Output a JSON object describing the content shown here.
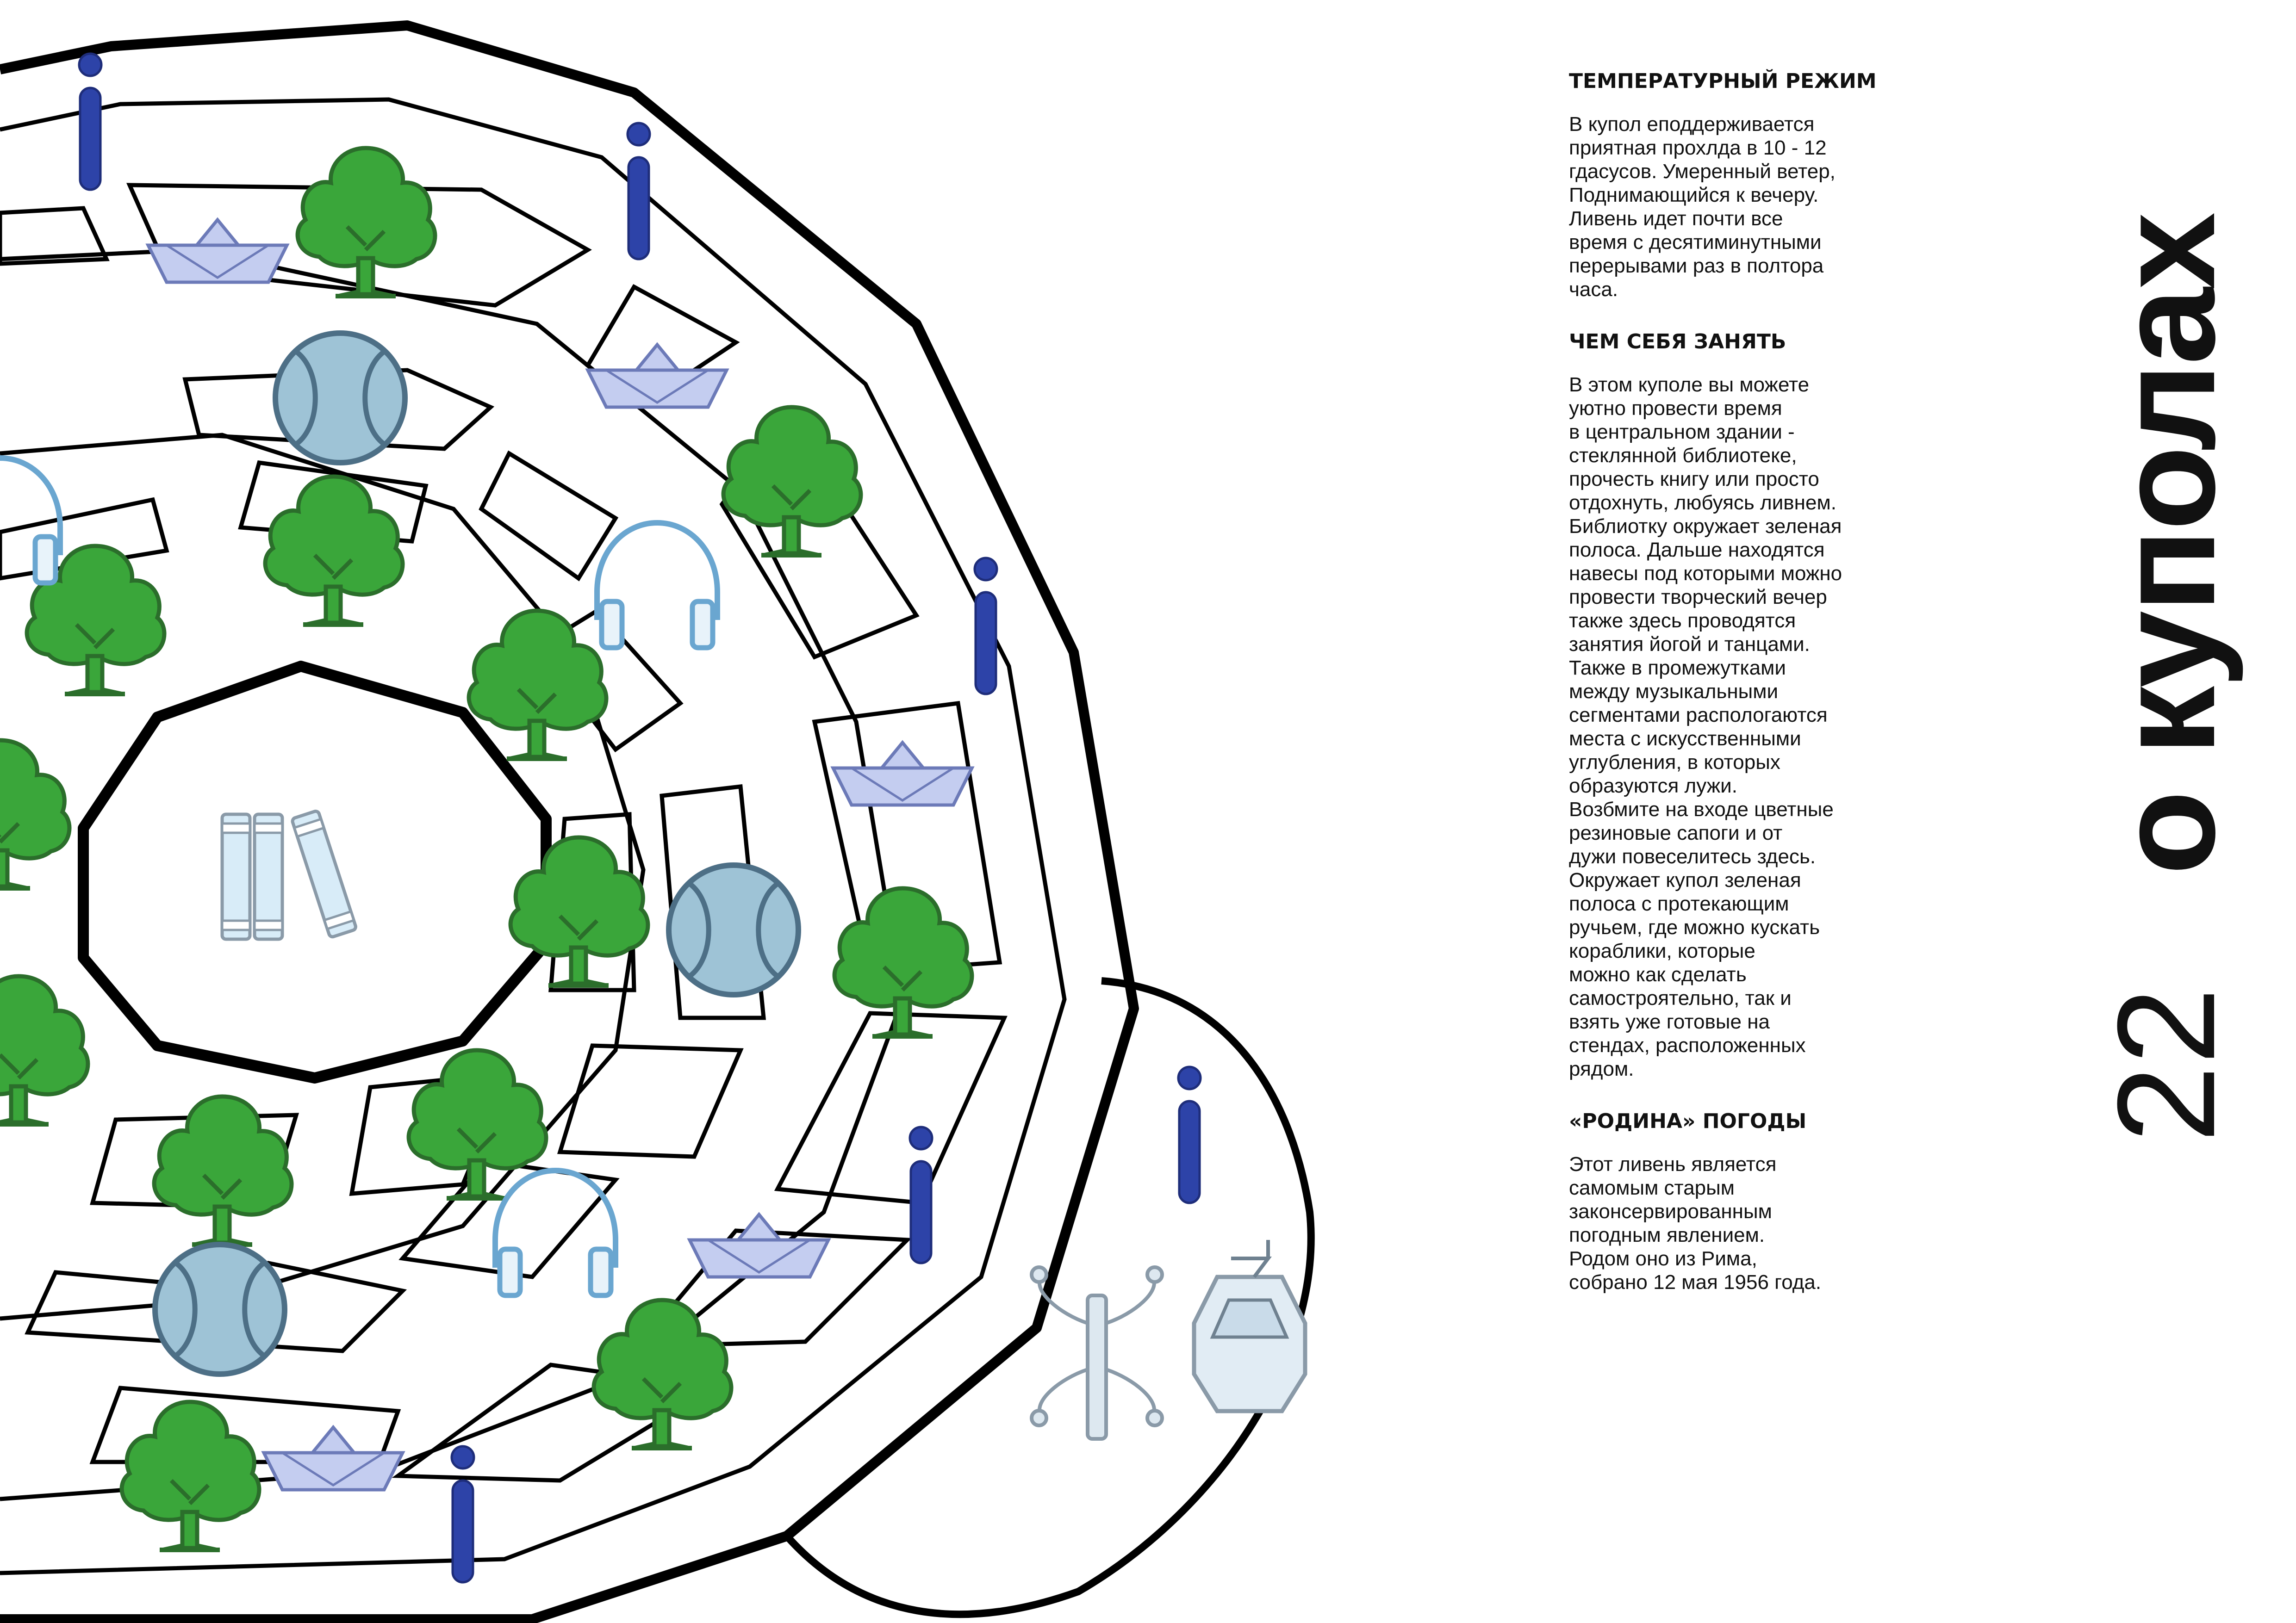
{
  "page": {
    "side_title_number": "22",
    "side_title_text": "о куполах"
  },
  "sections": [
    {
      "title": "ТЕМПЕРАТУРНЫЙ РЕЖИМ",
      "body": "В купол еподдерживается\nприятная прохлда в 10 - 12\nгдасусов. Умеренный ветер,\nПоднимающийся к вечеру.\nЛивень идет почти все\nвремя с десятиминутными\nперерывами раз в полтора\nчаса."
    },
    {
      "title": "ЧЕМ СЕБЯ ЗАНЯТЬ",
      "body": "В этом куполе вы можете\nуютно провести время\nв центральном здании -\nстеклянной библиотеке,\nпрочесть книгу или просто\nотдохнуть, любуясь ливнем.\nБиблиотку окружает зеленая\nполоса. Дальше находятся\nнавесы под которыми можно\nпровести творческий вечер\nтакже здесь проводятся\nзанятия йогой и танцами.\nТакже в промежутками\nмежду музыкальными\nсегментами распологаются\nместа с искусственными\nуглубления, в которых\nобразуются лужи.\nВозбмите на входе цветные\nрезиновые сапоги и от\nдужи повеселитесь здесь.\nОкружает купол зеленая\nполоса с протекающим\nручьем, где можно кускать\nкораблики, которые\nможно как сделать\nсамостроятельно, так и\nвзять уже готовые на\nстендах, расположенных\nрядом."
    },
    {
      "title": "«РОДИНА» ПОГОДЫ",
      "body": "Этот ливень является\nсамомым старым\nзаконсервированным\nпогодным явлением.\nРодом оно из Рима,\nсобрано 12 мая 1956 года."
    }
  ],
  "map": {
    "colors": {
      "outline": "#000000",
      "tree_fill": "#3aa63a",
      "tree_outline": "#2b6e2b",
      "ball_fill": "#9ec3d6",
      "ball_outline": "#4d6f86",
      "boat_fill": "#c4cdf0",
      "boat_outline": "#6c7ab8",
      "headphones": "#6aa6d0",
      "info_pin": "#2d43a8",
      "books": "#d8ecf8"
    },
    "icons": {
      "tree": "tree-icon",
      "ball": "ball-icon",
      "boat": "paper-boat-icon",
      "headphones": "headphones-icon",
      "info": "info-pin-icon",
      "books": "books-icon",
      "hanger": "coat-rack-icon",
      "lamp": "lantern-icon"
    }
  }
}
